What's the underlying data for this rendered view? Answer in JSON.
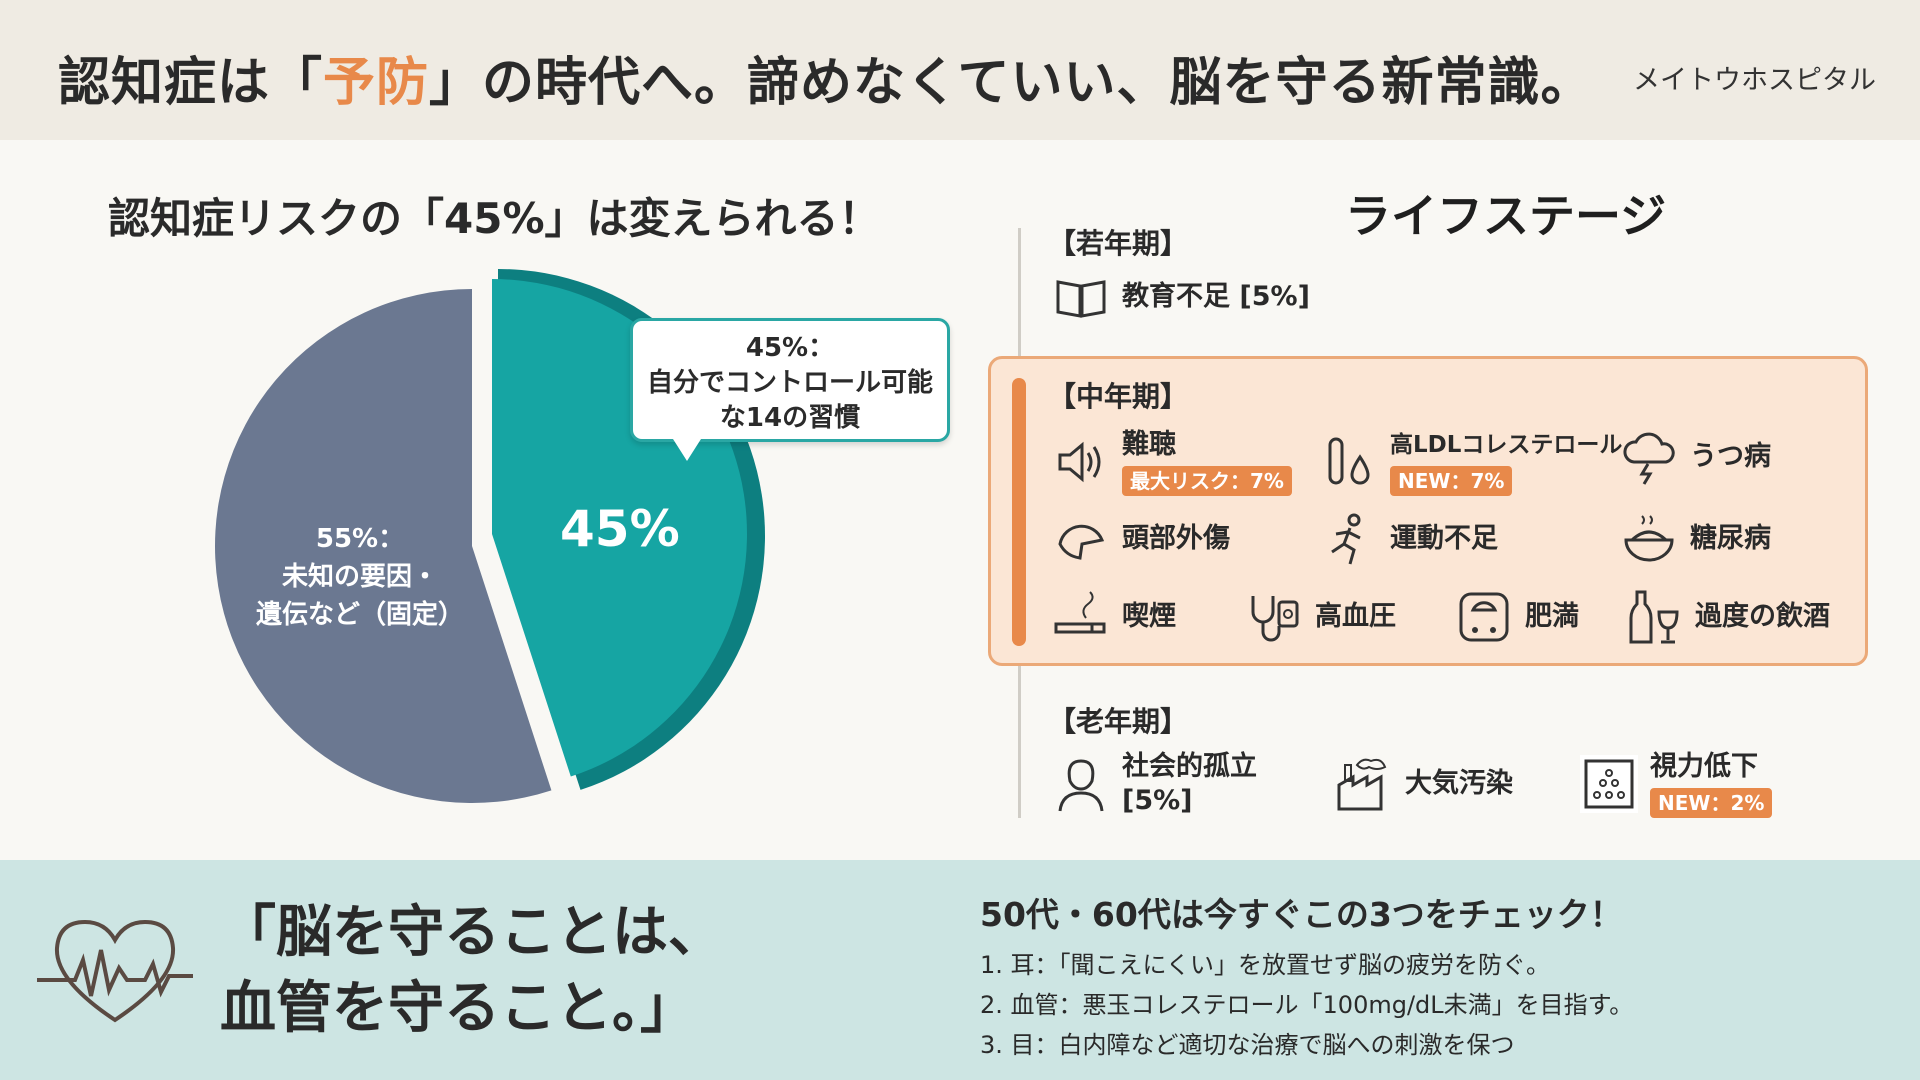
{
  "header": {
    "title_pre": "認知症は「",
    "title_accent": "予防",
    "title_post": "」の時代へ。諦めなくていい、脳を守る新常識。",
    "brand": "メイトウホスピタル"
  },
  "pie": {
    "heading": "認知症リスクの「45%」は変えられる！",
    "modifiable_label": "45%",
    "callout_line1": "45%：",
    "callout_line2": "自分でコントロール可能",
    "callout_line3": "な14の習慣",
    "fixed_line1": "55%：",
    "fixed_line2": "未知の要因・",
    "fixed_line3": "遺伝など（固定）"
  },
  "chart_data": {
    "type": "pie",
    "slices": [
      {
        "label": "自分でコントロール可能な14の習慣",
        "value": 45,
        "color": "#16a5a3"
      },
      {
        "label": "未知の要因・遺伝など（固定）",
        "value": 55,
        "color": "#6b7891"
      }
    ]
  },
  "life": {
    "title": "ライフステージ",
    "young": {
      "label": "【若年期】",
      "items": [
        {
          "text": "教育不足 [5%]",
          "icon": "book-icon"
        }
      ]
    },
    "middle": {
      "label": "【中年期】",
      "items": [
        {
          "text": "難聴",
          "badge": "最大リスク：7%",
          "icon": "speaker-icon"
        },
        {
          "text": "高LDLコレステロール",
          "badge": "NEW：7%",
          "icon": "test-tube-icon"
        },
        {
          "text": "うつ病",
          "icon": "storm-cloud-icon"
        },
        {
          "text": "頭部外傷",
          "icon": "helmet-icon"
        },
        {
          "text": "運動不足",
          "icon": "runner-icon"
        },
        {
          "text": "糖尿病",
          "icon": "rice-bowl-icon"
        },
        {
          "text": "喫煙",
          "icon": "cigarette-icon"
        },
        {
          "text": "高血圧",
          "icon": "blood-pressure-icon"
        },
        {
          "text": "肥満",
          "icon": "scale-icon"
        },
        {
          "text": "過度の飲酒",
          "icon": "wine-icon"
        }
      ]
    },
    "old": {
      "label": "【老年期】",
      "items": [
        {
          "text1": "社会的孤立",
          "text2": "[5%]",
          "icon": "person-icon"
        },
        {
          "text": "大気汚染",
          "icon": "factory-icon"
        },
        {
          "text": "視力低下",
          "badge": "NEW：2%",
          "icon": "eye-chart-icon"
        }
      ]
    }
  },
  "footer": {
    "quote_line1": "「脳を守ることは、",
    "quote_line2": "血管を守ること。」",
    "check_title": "50代・60代は今すぐこの3つをチェック！",
    "checks": [
      "1. 耳：「聞こえにくい」を放置せず脳の疲労を防ぐ。",
      "2. 血管：悪玉コレステロール「100mg/dL未満」を目指す。",
      "3. 目：白内障など適切な治療で脳への刺激を保つ"
    ]
  }
}
